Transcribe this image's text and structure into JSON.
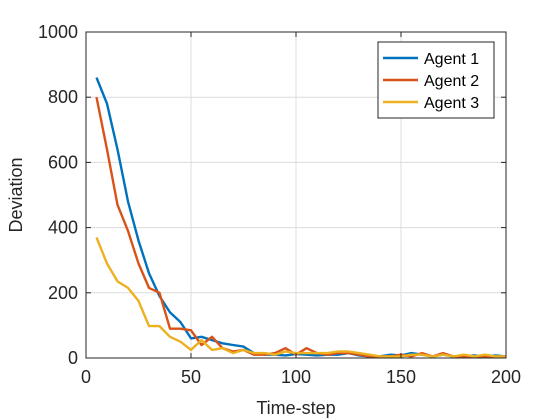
{
  "chart_data": {
    "type": "line",
    "xlabel": "Time-step",
    "ylabel": "Deviation",
    "xlim": [
      0,
      200
    ],
    "ylim": [
      0,
      1000
    ],
    "xticks": [
      0,
      50,
      100,
      150,
      200
    ],
    "yticks": [
      0,
      200,
      400,
      600,
      800,
      1000
    ],
    "grid": true,
    "legend_position": "top-right",
    "x": [
      5,
      10,
      15,
      20,
      25,
      30,
      35,
      40,
      45,
      50,
      55,
      60,
      65,
      70,
      75,
      80,
      85,
      90,
      95,
      100,
      105,
      110,
      115,
      120,
      125,
      130,
      135,
      140,
      145,
      150,
      155,
      160,
      165,
      170,
      175,
      180,
      185,
      190,
      195,
      200
    ],
    "series": [
      {
        "name": "Agent 1",
        "color": "#0072BD",
        "values": [
          860,
          780,
          640,
          480,
          360,
          260,
          190,
          140,
          110,
          60,
          65,
          55,
          45,
          40,
          35,
          15,
          10,
          10,
          8,
          12,
          10,
          8,
          10,
          10,
          15,
          8,
          5,
          5,
          10,
          8,
          15,
          10,
          5,
          10,
          5,
          5,
          8,
          5,
          8,
          5
        ]
      },
      {
        "name": "Agent 2",
        "color": "#D95319",
        "values": [
          800,
          640,
          470,
          390,
          290,
          215,
          200,
          90,
          90,
          85,
          40,
          65,
          30,
          20,
          25,
          10,
          10,
          15,
          30,
          10,
          30,
          15,
          10,
          15,
          15,
          10,
          5,
          5,
          5,
          10,
          5,
          15,
          5,
          15,
          5,
          5,
          5,
          5,
          5,
          5
        ]
      },
      {
        "name": "Agent 3",
        "color": "#EDB120",
        "values": [
          370,
          290,
          235,
          215,
          175,
          98,
          98,
          65,
          50,
          25,
          55,
          25,
          30,
          15,
          25,
          15,
          15,
          10,
          20,
          15,
          15,
          15,
          15,
          20,
          20,
          15,
          10,
          5,
          5,
          5,
          10,
          10,
          5,
          10,
          5,
          10,
          5,
          10,
          5,
          5
        ]
      }
    ]
  }
}
